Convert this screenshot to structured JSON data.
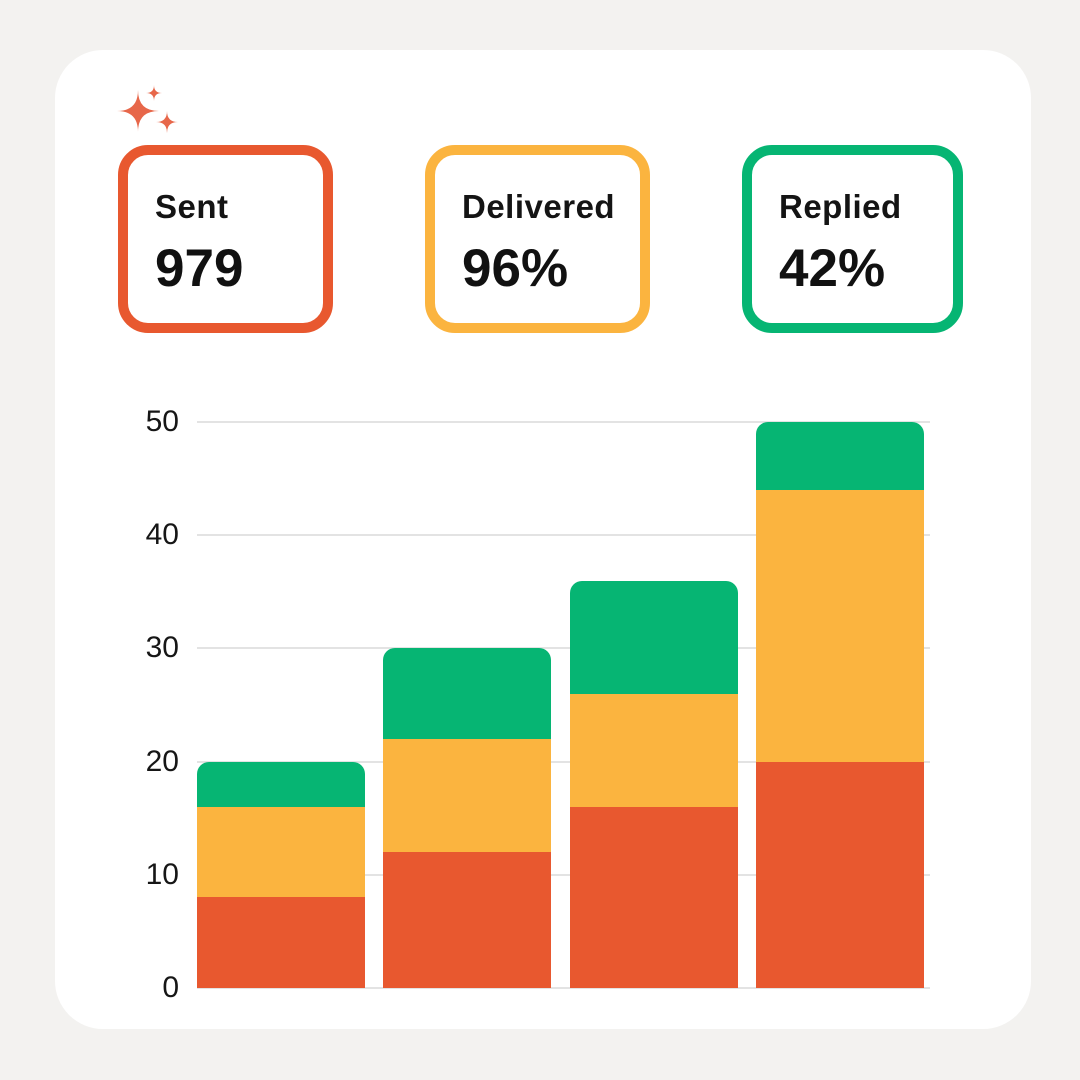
{
  "page": {
    "background": "#F3F2F0"
  },
  "card": {
    "background": "#FFFFFF"
  },
  "sparkles": {
    "color": "#E7674A"
  },
  "stats": [
    {
      "label": "Sent",
      "value": "979",
      "accent": "#E8582F"
    },
    {
      "label": "Delivered",
      "value": "96%",
      "accent": "#FBB43F"
    },
    {
      "label": "Replied",
      "value": "42%",
      "accent": "#06B573"
    }
  ],
  "chart_data": {
    "type": "bar",
    "stacked": true,
    "title": "",
    "xlabel": "",
    "ylabel": "",
    "categories": [
      "bar-1",
      "bar-2",
      "bar-3",
      "bar-4"
    ],
    "x_axis_labels_visible": false,
    "series": [
      {
        "name": "orange-bottom",
        "color": "#E8582F",
        "values": [
          8,
          12,
          16,
          20
        ]
      },
      {
        "name": "yellow-middle",
        "color": "#FBB43F",
        "values": [
          8,
          10,
          10,
          24
        ]
      },
      {
        "name": "green-top",
        "color": "#06B573",
        "values": [
          4,
          8,
          10,
          6
        ]
      }
    ],
    "totals": [
      20,
      30,
      36,
      50
    ],
    "yticks": [
      0,
      10,
      20,
      30,
      40,
      50
    ],
    "ylim": [
      0,
      50
    ],
    "grid": true,
    "legend": false,
    "gridline_color": "#E3E3E3",
    "tick_color": "#161616"
  }
}
